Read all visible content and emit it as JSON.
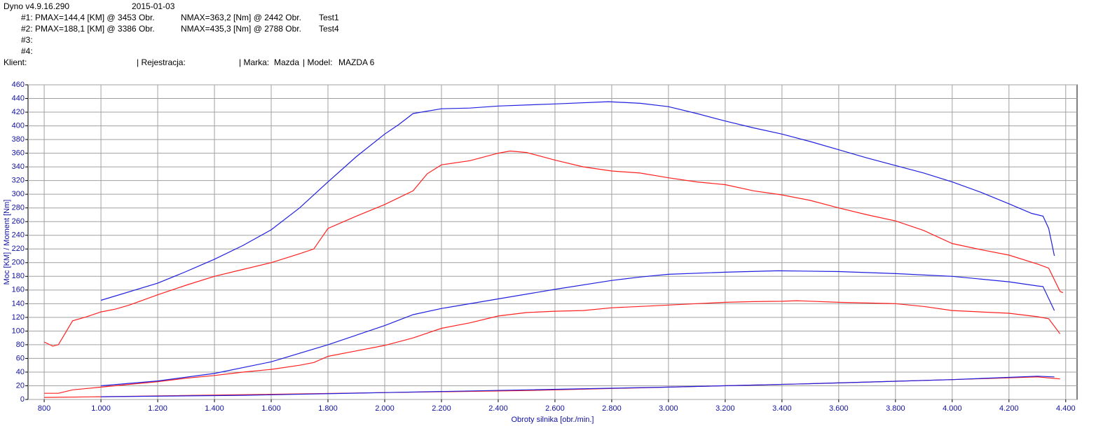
{
  "header": {
    "app": "Dyno v4.9.16.290",
    "date": "2015-01-03",
    "runs": [
      [
        "#1: PMAX=144,4 [KM] @ 3453 Obr.",
        "NMAX=363,2 [Nm] @ 2442 Obr.",
        "Test1"
      ],
      [
        "#2: PMAX=188,1 [KM] @ 3386 Obr.",
        "NMAX=435,3 [Nm] @ 2788 Obr.",
        "Test4"
      ],
      [
        "#3:"
      ],
      [
        "#4:"
      ]
    ],
    "client": [
      "Klient:",
      "| Rejestracja:",
      "| Marka:",
      "Mazda",
      "| Model:",
      "MAZDA 6"
    ]
  },
  "chart_data": {
    "type": "line",
    "xlabel": "Obroty silnika [obr./min.]",
    "ylabel": "Moc [KM] / Moment [Nm]",
    "xlim": [
      743,
      4440
    ],
    "ylim": [
      0,
      460
    ],
    "grid": true,
    "xticks": [
      800,
      {
        "value": 1000,
        "label": "1.000"
      },
      {
        "value": 1200,
        "label": "1.200"
      },
      {
        "value": 1400,
        "label": "1.400"
      },
      {
        "value": 1600,
        "label": "1.600"
      },
      {
        "value": 1800,
        "label": "1.800"
      },
      {
        "value": 2000,
        "label": "2.000"
      },
      {
        "value": 2200,
        "label": "2.200"
      },
      {
        "value": 2400,
        "label": "2.400"
      },
      {
        "value": 2600,
        "label": "2.600"
      },
      {
        "value": 2800,
        "label": "2.800"
      },
      {
        "value": 3000,
        "label": "3.000"
      },
      {
        "value": 3200,
        "label": "3.200"
      },
      {
        "value": 3400,
        "label": "3.400"
      },
      {
        "value": 3600,
        "label": "3.600"
      },
      {
        "value": 3800,
        "label": "3.800"
      },
      {
        "value": 4000,
        "label": "4.000"
      },
      {
        "value": 4200,
        "label": "4.200"
      },
      {
        "value": 4400,
        "label": "4.400"
      }
    ],
    "yticks": [
      0,
      20,
      40,
      60,
      80,
      100,
      120,
      140,
      160,
      180,
      200,
      220,
      240,
      260,
      280,
      300,
      320,
      340,
      360,
      380,
      400,
      420,
      440,
      460
    ],
    "series": [
      {
        "color": "#ff2020",
        "x": [
          800,
          830,
          850,
          900,
          950,
          1000,
          1050,
          1100,
          1200,
          1300,
          1400,
          1500,
          1600,
          1700,
          1750,
          1800,
          1900,
          2000,
          2100,
          2150,
          2200,
          2300,
          2400,
          2442,
          2500,
          2600,
          2700,
          2800,
          2900,
          3000,
          3100,
          3200,
          3300,
          3400,
          3500,
          3600,
          3700,
          3800,
          3900,
          4000,
          4100,
          4200,
          4300,
          4340,
          4380,
          4390
        ],
        "values": [
          84,
          78,
          80,
          115,
          121,
          128,
          132,
          138,
          153,
          167,
          180,
          190,
          200,
          213,
          220,
          250,
          268,
          285,
          305,
          330,
          343,
          349,
          360,
          363.2,
          361,
          350,
          340,
          334,
          331,
          324,
          318,
          314,
          305,
          299,
          291,
          280,
          270,
          261,
          247,
          228,
          219,
          211,
          198,
          192,
          158,
          156
        ]
      },
      {
        "color": "#ff2020",
        "x": [
          800,
          850,
          900,
          1000,
          1100,
          1200,
          1300,
          1400,
          1500,
          1600,
          1700,
          1750,
          1800,
          1900,
          2000,
          2100,
          2200,
          2300,
          2400,
          2500,
          2600,
          2700,
          2800,
          2900,
          3000,
          3100,
          3200,
          3300,
          3400,
          3453,
          3600,
          3800,
          3900,
          4000,
          4100,
          4200,
          4300,
          4340,
          4380
        ],
        "values": [
          9,
          9,
          14,
          18,
          22,
          26,
          31,
          35,
          40,
          44,
          50,
          54,
          63,
          71,
          79,
          90,
          104,
          112,
          122,
          127,
          129,
          130,
          134,
          136,
          138,
          140,
          142,
          143,
          143.5,
          144.4,
          142,
          140,
          136,
          130,
          128,
          126,
          121,
          118,
          96
        ]
      },
      {
        "color": "#ff2020",
        "x": [
          800,
          1000,
          1500,
          2000,
          2500,
          3000,
          3500,
          4000,
          4300,
          4380
        ],
        "values": [
          3,
          4,
          7,
          10,
          13,
          18,
          23,
          29,
          33,
          30
        ]
      },
      {
        "color": "#2020e0",
        "x": [
          1000,
          1200,
          1300,
          1400,
          1500,
          1600,
          1700,
          1800,
          1900,
          2000,
          2050,
          2100,
          2200,
          2300,
          2400,
          2600,
          2788,
          2900,
          3000,
          3100,
          3200,
          3300,
          3400,
          3500,
          3600,
          3700,
          3800,
          3900,
          4000,
          4100,
          4200,
          4280,
          4320,
          4340,
          4360
        ],
        "values": [
          145,
          170,
          187,
          205,
          225,
          248,
          280,
          318,
          355,
          388,
          402,
          418,
          425,
          426,
          429,
          432,
          435.3,
          433,
          428,
          418,
          407,
          397,
          388,
          377,
          365,
          353,
          342,
          331,
          318,
          303,
          286,
          272,
          268,
          250,
          210
        ]
      },
      {
        "color": "#2020e0",
        "x": [
          1000,
          1200,
          1400,
          1600,
          1800,
          2000,
          2100,
          2200,
          2400,
          2600,
          2800,
          2900,
          3000,
          3200,
          3386,
          3600,
          3800,
          4000,
          4200,
          4300,
          4320,
          4360
        ],
        "values": [
          20,
          27,
          38,
          55,
          80,
          108,
          124,
          133,
          147,
          161,
          174,
          179,
          183,
          186,
          188.1,
          187,
          184,
          180,
          172,
          166,
          165,
          130
        ]
      },
      {
        "color": "#2020e0",
        "x": [
          1000,
          1500,
          2000,
          2500,
          3000,
          3500,
          4000,
          4300,
          4360
        ],
        "values": [
          4,
          6,
          10,
          14,
          18,
          23,
          29,
          34,
          33
        ]
      }
    ]
  }
}
